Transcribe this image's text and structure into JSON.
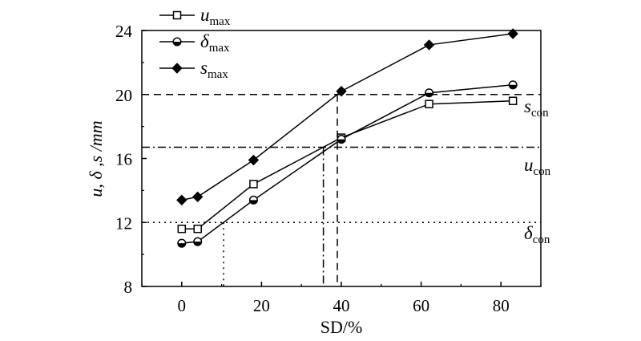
{
  "chart_data": {
    "type": "line",
    "xlabel": "SD/%",
    "ylabel": "u, δ ,s /mm",
    "xlim": [
      -10,
      90
    ],
    "ylim": [
      8,
      24
    ],
    "x_ticks": [
      0,
      20,
      40,
      60,
      80
    ],
    "y_ticks": [
      8,
      12,
      16,
      20,
      24
    ],
    "grid": false,
    "legend_position": "top-left",
    "series": [
      {
        "name": "u_max",
        "symbol": "u",
        "subscript": "max",
        "marker": "open-square",
        "x": [
          0,
          4,
          18,
          40,
          62,
          83
        ],
        "y": [
          11.6,
          11.6,
          14.4,
          17.3,
          19.4,
          19.6
        ]
      },
      {
        "name": "δ_max",
        "symbol": "δ",
        "subscript": "max",
        "marker": "half-filled-circle",
        "x": [
          0,
          4,
          18,
          40,
          62,
          83
        ],
        "y": [
          10.7,
          10.8,
          13.4,
          17.2,
          20.1,
          20.6
        ]
      },
      {
        "name": "s_max",
        "symbol": "s",
        "subscript": "max",
        "marker": "filled-diamond",
        "x": [
          0,
          4,
          18,
          40,
          62,
          83
        ],
        "y": [
          13.4,
          13.6,
          15.9,
          20.2,
          23.1,
          23.8
        ]
      }
    ],
    "reference_lines": [
      {
        "name": "s_con",
        "symbol": "s",
        "subscript": "con",
        "y": 20,
        "style": "dashed",
        "x_intersect": 39
      },
      {
        "name": "u_con",
        "symbol": "u",
        "subscript": "con",
        "y": 16.7,
        "style": "dash-dot",
        "x_intersect": 35.5
      },
      {
        "name": "δ_con",
        "symbol": "δ",
        "subscript": "con",
        "y": 12,
        "style": "dotted",
        "x_intersect": 10.5
      }
    ]
  }
}
